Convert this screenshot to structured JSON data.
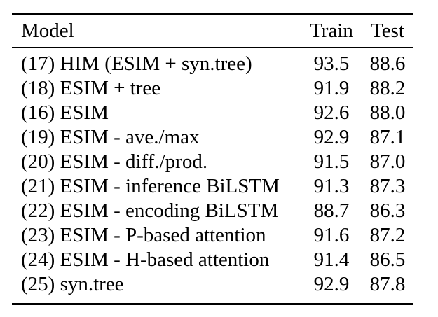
{
  "table": {
    "headers": {
      "model": "Model",
      "train": "Train",
      "test": "Test"
    },
    "rows": [
      {
        "model": "(17) HIM (ESIM + syn.tree)",
        "train": "93.5",
        "test": "88.6"
      },
      {
        "model": "(18) ESIM + tree",
        "train": "91.9",
        "test": "88.2"
      },
      {
        "model": "(16) ESIM",
        "train": "92.6",
        "test": "88.0"
      },
      {
        "model": "(19) ESIM - ave./max",
        "train": "92.9",
        "test": "87.1"
      },
      {
        "model": "(20) ESIM - diff./prod.",
        "train": "91.5",
        "test": "87.0"
      },
      {
        "model": "(21) ESIM - inference BiLSTM",
        "train": "91.3",
        "test": "87.3"
      },
      {
        "model": "(22) ESIM - encoding BiLSTM",
        "train": "88.7",
        "test": "86.3"
      },
      {
        "model": "(23) ESIM - P-based attention",
        "train": "91.6",
        "test": "87.2"
      },
      {
        "model": "(24) ESIM - H-based attention",
        "train": "91.4",
        "test": "86.5"
      },
      {
        "model": "(25) syn.tree",
        "train": "92.9",
        "test": "87.8"
      }
    ],
    "colors": {
      "text": "#000000",
      "background": "#ffffff",
      "rule": "#000000"
    }
  }
}
